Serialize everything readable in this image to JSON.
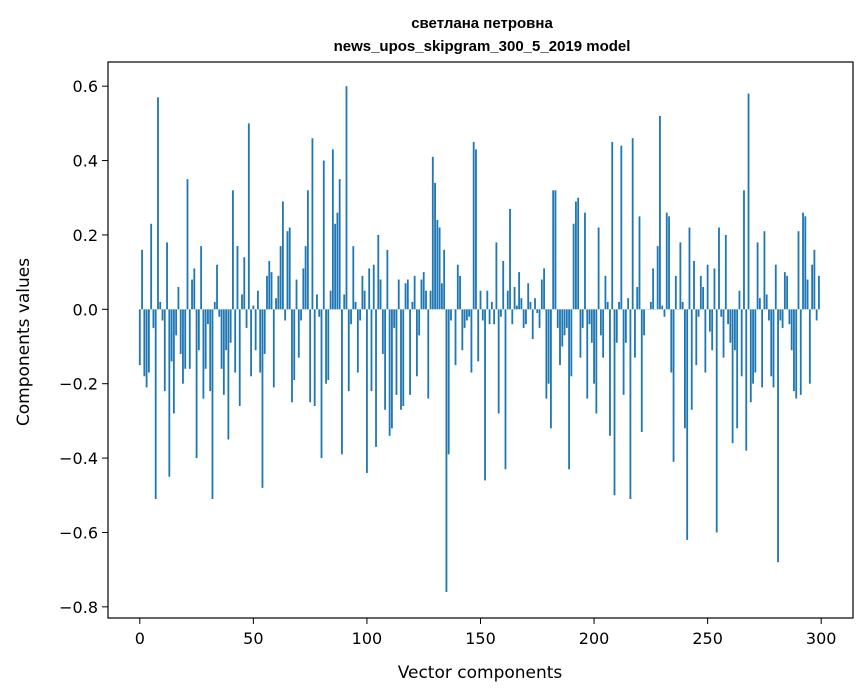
{
  "chart_data": {
    "type": "bar",
    "title": "светлана петровна",
    "subtitle": "news_upos_skipgram_300_5_2019 model",
    "xlabel": "Vector components",
    "ylabel": "Components values",
    "xlim": [
      -14,
      314
    ],
    "ylim": [
      -0.83,
      0.665
    ],
    "x_ticks": [
      0,
      50,
      100,
      150,
      200,
      250,
      300
    ],
    "x_tick_labels": [
      "0",
      "50",
      "100",
      "150",
      "200",
      "250",
      "300"
    ],
    "y_ticks": [
      -0.8,
      -0.6,
      -0.4,
      -0.2,
      0.0,
      0.2,
      0.4,
      0.6
    ],
    "y_tick_labels": [
      "−0.8",
      "−0.6",
      "−0.4",
      "−0.2",
      "0.0",
      "0.2",
      "0.4",
      "0.6"
    ],
    "color": "#1f77b4",
    "grid": false,
    "legend": "none",
    "x": "0..299",
    "values": [
      -0.15,
      0.16,
      -0.18,
      -0.21,
      -0.17,
      0.23,
      -0.05,
      -0.51,
      0.57,
      0.02,
      -0.03,
      -0.22,
      0.18,
      -0.45,
      -0.14,
      -0.28,
      -0.07,
      0.06,
      -0.12,
      -0.2,
      -0.16,
      0.35,
      -0.16,
      0.08,
      0.11,
      -0.4,
      -0.11,
      0.17,
      -0.24,
      -0.16,
      -0.04,
      -0.22,
      -0.51,
      0.02,
      0.12,
      -0.02,
      -0.16,
      -0.23,
      -0.11,
      -0.35,
      -0.09,
      0.32,
      -0.17,
      0.17,
      -0.26,
      0.04,
      0.14,
      -0.05,
      0.5,
      -0.18,
      0.01,
      -0.11,
      0.05,
      -0.17,
      -0.48,
      -0.12,
      0.09,
      0.13,
      0.1,
      -0.21,
      0.03,
      0.09,
      0.17,
      0.29,
      -0.03,
      0.21,
      0.22,
      -0.25,
      -0.19,
      0.08,
      -0.13,
      -0.03,
      0.11,
      0.17,
      0.32,
      -0.25,
      0.46,
      -0.26,
      0.04,
      -0.02,
      -0.4,
      0.4,
      -0.2,
      -0.19,
      0.05,
      0.43,
      0.23,
      0.26,
      0.35,
      -0.39,
      0.04,
      0.6,
      -0.22,
      -0.04,
      0.17,
      0.02,
      -0.17,
      -0.03,
      0.09,
      0.05,
      -0.44,
      0.11,
      -0.22,
      0.12,
      -0.37,
      0.2,
      0.08,
      -0.12,
      -0.27,
      0.16,
      -0.34,
      -0.32,
      -0.05,
      -0.23,
      0.08,
      -0.27,
      -0.26,
      0.07,
      0.08,
      -0.23,
      0.02,
      0.09,
      -0.18,
      -0.07,
      0.08,
      0.1,
      0.05,
      -0.24,
      0.05,
      0.41,
      0.34,
      0.24,
      0.22,
      0.07,
      0.16,
      -0.76,
      -0.39,
      -0.03,
      0.0,
      -0.15,
      0.12,
      0.09,
      -0.11,
      -0.05,
      -0.03,
      -0.02,
      -0.17,
      0.45,
      0.43,
      -0.14,
      0.05,
      -0.03,
      -0.46,
      0.05,
      -0.04,
      0.02,
      -0.04,
      0.18,
      -0.28,
      -0.02,
      0.13,
      -0.43,
      0.05,
      0.27,
      -0.04,
      0.06,
      0.01,
      0.1,
      0.03,
      -0.05,
      -0.04,
      0.07,
      0.02,
      -0.08,
      0.03,
      -0.01,
      -0.05,
      0.08,
      0.11,
      -0.24,
      -0.2,
      -0.32,
      0.32,
      0.32,
      -0.05,
      -0.15,
      -0.1,
      -0.07,
      -0.05,
      -0.43,
      -0.18,
      0.23,
      0.29,
      0.3,
      -0.13,
      -0.05,
      0.26,
      -0.24,
      -0.04,
      -0.09,
      -0.2,
      -0.28,
      0.22,
      -0.07,
      -0.13,
      0.09,
      0.02,
      -0.34,
      0.45,
      -0.5,
      -0.09,
      0.02,
      0.44,
      -0.23,
      -0.09,
      0.03,
      -0.51,
      0.46,
      -0.13,
      0.06,
      0.25,
      -0.33,
      -0.07,
      0.0,
      0.0,
      0.02,
      0.11,
      0.0,
      0.17,
      0.52,
      0.01,
      -0.02,
      0.26,
      0.25,
      -0.17,
      -0.41,
      0.09,
      0.0,
      0.18,
      0.02,
      -0.32,
      -0.62,
      0.22,
      -0.27,
      0.13,
      -0.15,
      -0.02,
      0.09,
      0.06,
      -0.17,
      0.12,
      -0.06,
      -0.11,
      0.11,
      -0.6,
      0.22,
      -0.02,
      -0.13,
      0.2,
      -0.04,
      -0.09,
      -0.36,
      -0.11,
      -0.32,
      0.05,
      -0.18,
      0.32,
      -0.38,
      0.58,
      -0.25,
      -0.2,
      -0.17,
      0.18,
      0.03,
      -0.21,
      0.21,
      0.04,
      -0.03,
      -0.18,
      -0.21,
      0.12,
      -0.68,
      -0.03,
      -0.05,
      0.1,
      0.09,
      -0.04,
      -0.11,
      -0.22,
      -0.24,
      0.21,
      -0.23,
      0.26,
      0.25,
      0.08,
      -0.2,
      0.12,
      0.16,
      -0.03,
      0.09
    ]
  }
}
